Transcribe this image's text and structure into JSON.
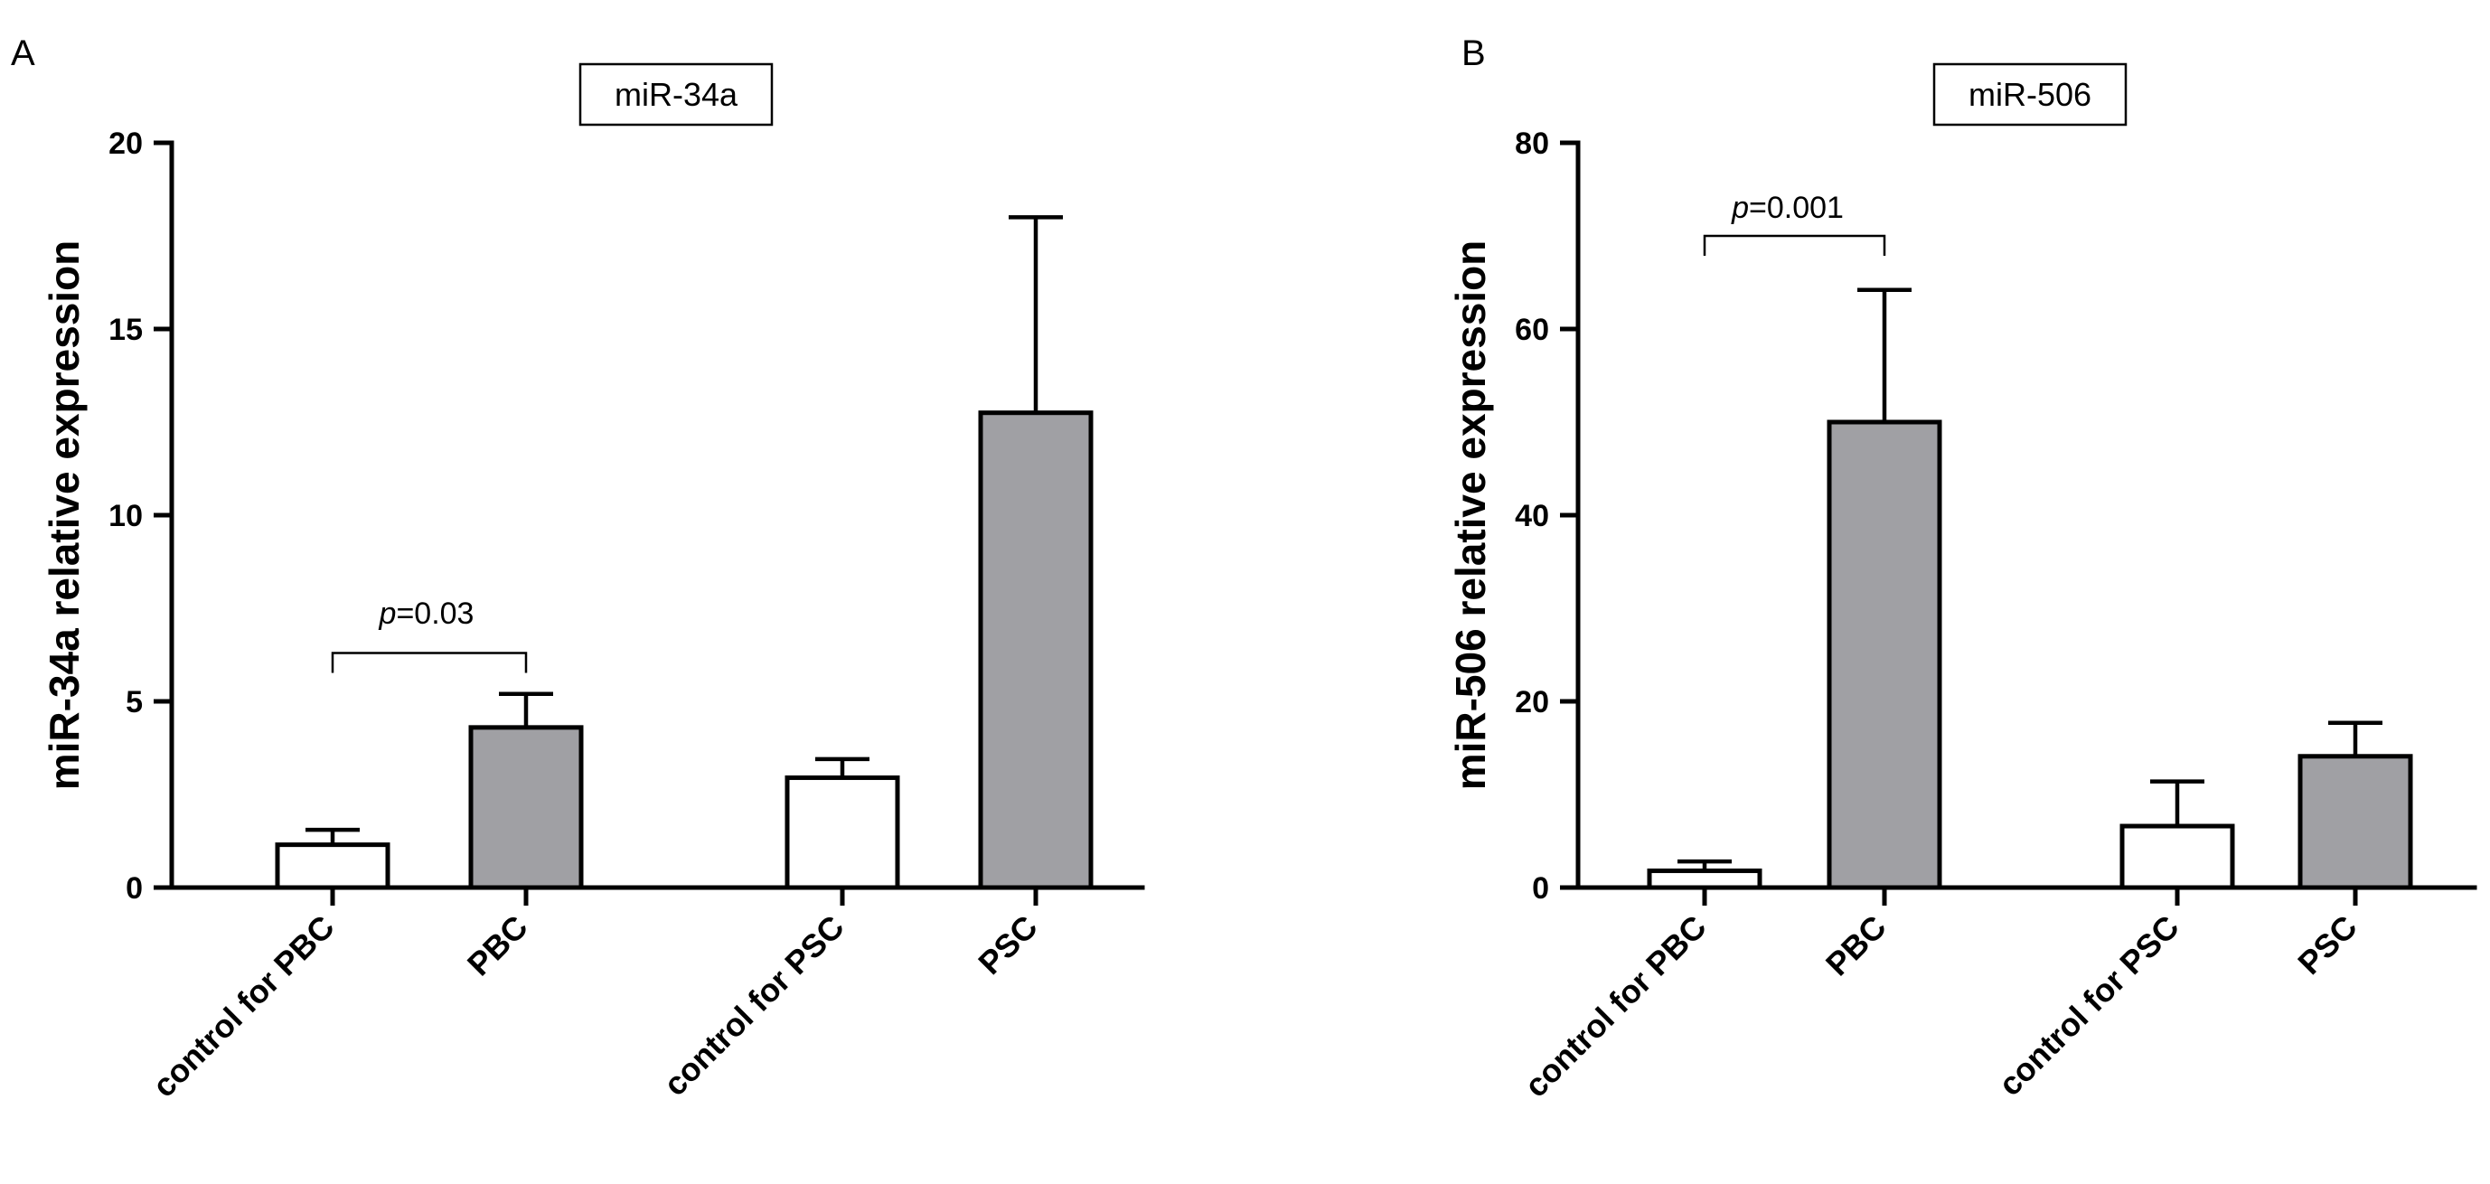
{
  "chart_data": [
    {
      "panel": "A",
      "type": "bar",
      "title": "miR-34a",
      "ylabel": "miR-34a relative expression",
      "xlabel": "",
      "ylim": [
        0,
        20
      ],
      "yticks": [
        0,
        5,
        10,
        15,
        20
      ],
      "categories": [
        "control for PBC",
        "PBC",
        "control for PSC",
        "PSC"
      ],
      "values": [
        1.15,
        4.3,
        2.95,
        12.75
      ],
      "errors": [
        0.4,
        0.9,
        0.5,
        5.25
      ],
      "colors": [
        "#ffffff",
        "#a0a0a4",
        "#ffffff",
        "#a0a0a4"
      ],
      "annotations": [
        {
          "from": 0,
          "to": 1,
          "p_label": "p",
          "p_value": "=0.03",
          "level": 6.3
        }
      ]
    },
    {
      "panel": "B",
      "type": "bar",
      "title": "miR-506",
      "ylabel": "miR-506 relative expression",
      "xlabel": "",
      "ylim": [
        0,
        80
      ],
      "yticks": [
        0,
        20,
        40,
        60,
        80
      ],
      "categories": [
        "control for PBC",
        "PBC",
        "control for PSC",
        "PSC"
      ],
      "values": [
        1.8,
        50,
        6.6,
        14.1
      ],
      "errors": [
        1.0,
        14.2,
        4.8,
        3.6
      ],
      "colors": [
        "#ffffff",
        "#a0a0a4",
        "#ffffff",
        "#a0a0a4"
      ],
      "annotations": [
        {
          "from": 0,
          "to": 1,
          "p_label": "p",
          "p_value": "=0.001",
          "level": 70
        }
      ]
    }
  ]
}
